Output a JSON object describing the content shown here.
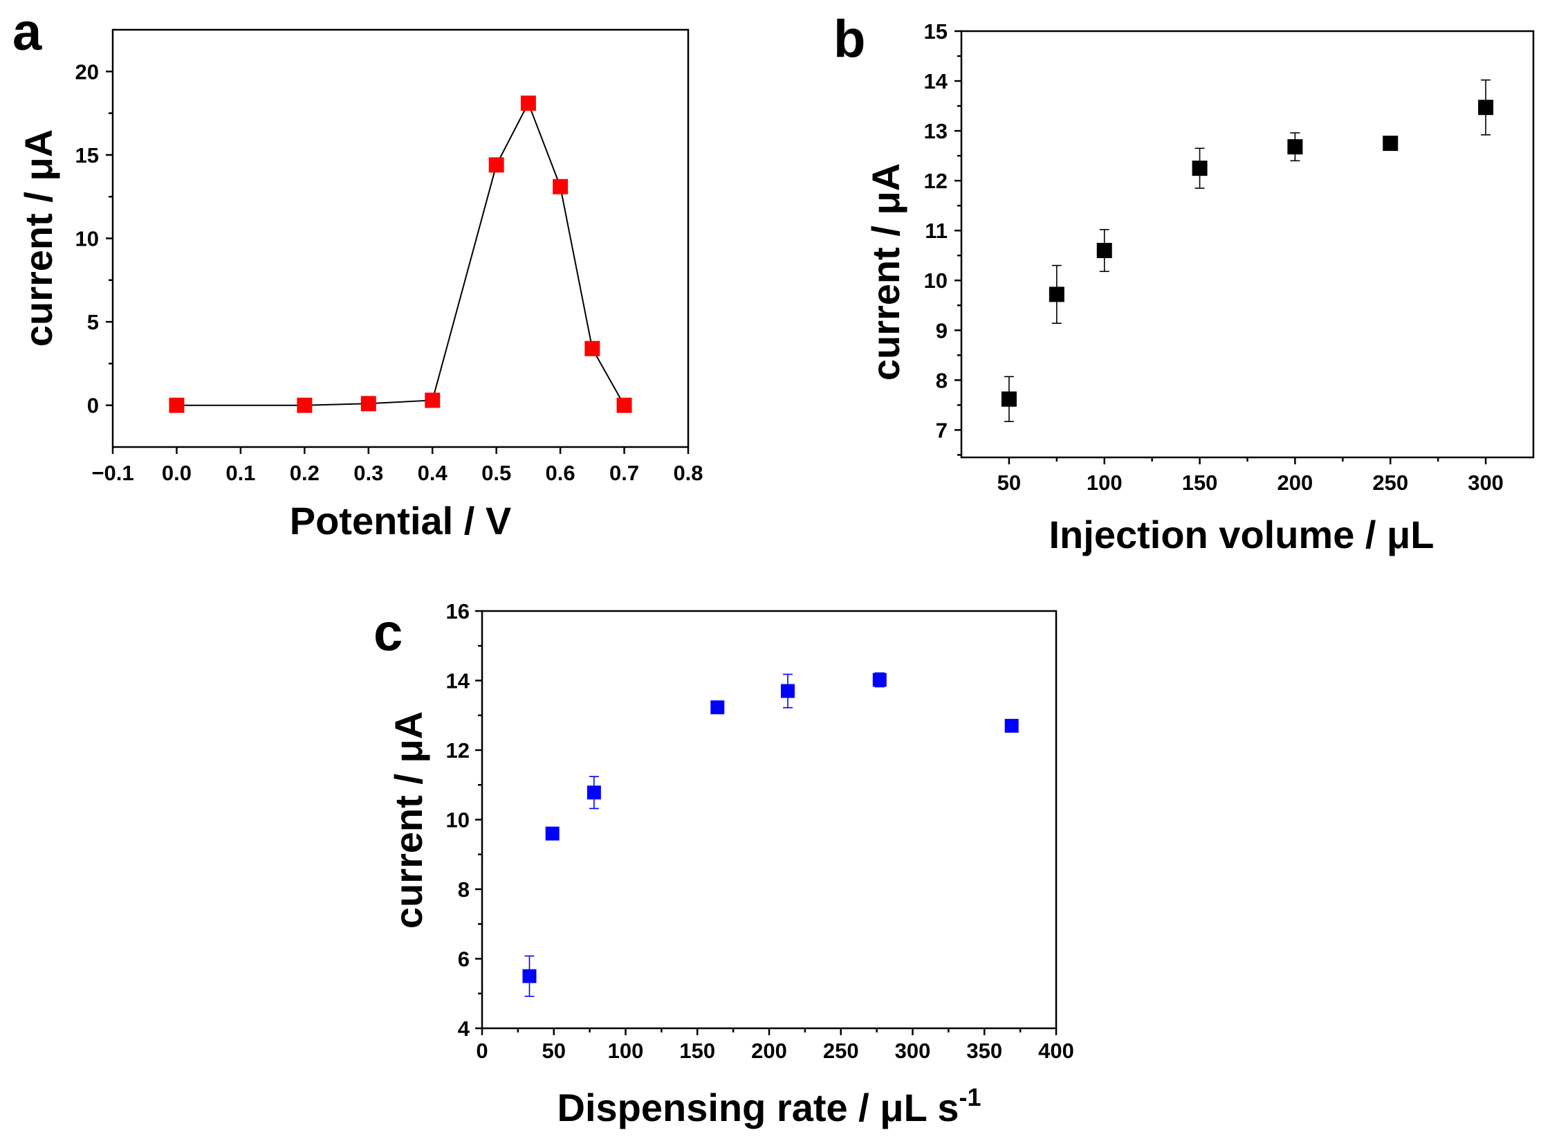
{
  "figure": {
    "panels": [
      {
        "id": "a",
        "letter": "a"
      },
      {
        "id": "b",
        "letter": "b"
      },
      {
        "id": "c",
        "letter": "c"
      }
    ]
  },
  "chart_data": [
    {
      "panel": "a",
      "type": "line",
      "title": "",
      "xlabel": "Potential / V",
      "ylabel": "current / μA",
      "xlim": [
        -0.1,
        0.8
      ],
      "ylim": [
        -2.5,
        22.5
      ],
      "xticks": [
        -0.1,
        0.0,
        0.1,
        0.2,
        0.3,
        0.4,
        0.5,
        0.6,
        0.7,
        0.8
      ],
      "xtick_labels": [
        "−0.1",
        "0.0",
        "0.1",
        "0.2",
        "0.3",
        "0.4",
        "0.5",
        "0.6",
        "0.7",
        "0.8"
      ],
      "yticks": [
        0,
        5,
        10,
        15,
        20
      ],
      "ytick_labels": [
        "0",
        "5",
        "10",
        "15",
        "20"
      ],
      "grid": false,
      "series": [
        {
          "name": "current",
          "color": "#ff0000",
          "marker": "square",
          "connected": true,
          "x": [
            0.0,
            0.2,
            0.3,
            0.4,
            0.5,
            0.55,
            0.6,
            0.65,
            0.7
          ],
          "y": [
            0.0,
            0.0,
            0.1,
            0.3,
            14.4,
            18.1,
            13.1,
            3.4,
            0.0
          ]
        }
      ]
    },
    {
      "panel": "b",
      "type": "scatter",
      "title": "",
      "xlabel": "Injection volume / μL",
      "ylabel": "current / μA",
      "xlim": [
        25,
        325
      ],
      "ylim": [
        6.45,
        15
      ],
      "xticks": [
        50,
        100,
        150,
        200,
        250,
        300
      ],
      "xtick_labels": [
        "50",
        "100",
        "150",
        "200",
        "250",
        "300"
      ],
      "yticks": [
        7,
        8,
        9,
        10,
        11,
        12,
        13,
        14,
        15
      ],
      "ytick_labels": [
        "7",
        "8",
        "9",
        "10",
        "11",
        "12",
        "13",
        "14",
        "15"
      ],
      "grid": false,
      "series": [
        {
          "name": "current",
          "color": "#000000",
          "marker": "square",
          "connected": false,
          "x": [
            50,
            75,
            100,
            150,
            200,
            250,
            300
          ],
          "y": [
            7.62,
            9.72,
            10.6,
            12.25,
            12.68,
            12.75,
            13.47
          ],
          "err": [
            0.45,
            0.58,
            0.42,
            0.4,
            0.28,
            0.05,
            0.55
          ]
        }
      ]
    },
    {
      "panel": "c",
      "type": "scatter",
      "title": "",
      "xlabel": "Dispensing rate / μL s",
      "xlabel_superscript": "-1",
      "ylabel": "current / μA",
      "xlim": [
        0,
        400
      ],
      "ylim": [
        4,
        16
      ],
      "xticks": [
        0,
        50,
        100,
        150,
        200,
        250,
        300,
        350,
        400
      ],
      "xtick_labels": [
        "0",
        "50",
        "100",
        "150",
        "200",
        "250",
        "300",
        "350",
        "400"
      ],
      "yticks": [
        4,
        6,
        8,
        10,
        12,
        14,
        16
      ],
      "ytick_labels": [
        "4",
        "6",
        "8",
        "10",
        "12",
        "14",
        "16"
      ],
      "grid": false,
      "series": [
        {
          "name": "current",
          "color": "#0000ff",
          "marker": "square",
          "connected": false,
          "x": [
            33,
            49,
            78,
            164,
            213,
            277,
            369
          ],
          "y": [
            5.5,
            9.6,
            10.78,
            13.23,
            13.7,
            14.02,
            12.7
          ],
          "err": [
            0.58,
            0.05,
            0.46,
            0.05,
            0.48,
            0.2,
            0.05
          ]
        }
      ]
    }
  ]
}
